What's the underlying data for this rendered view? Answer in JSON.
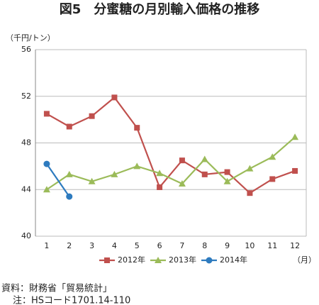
{
  "chart_data": {
    "type": "line",
    "title": "図5　分蜜糖の月別輸入価格の推移",
    "y_axis_label": "（千円/トン）",
    "x_axis_label": "（月）",
    "categories": [
      "1",
      "2",
      "3",
      "4",
      "5",
      "6",
      "7",
      "8",
      "9",
      "10",
      "11",
      "12"
    ],
    "series": [
      {
        "name": "2012年",
        "color": "#c0504d",
        "marker": "square",
        "values": [
          50.5,
          49.4,
          50.3,
          51.9,
          49.3,
          44.2,
          46.5,
          45.3,
          45.5,
          43.7,
          44.9,
          45.6
        ]
      },
      {
        "name": "2013年",
        "color": "#9bbb59",
        "marker": "triangle",
        "values": [
          44.0,
          45.3,
          44.7,
          45.3,
          46.0,
          45.4,
          44.5,
          46.6,
          44.7,
          45.8,
          46.8,
          48.5
        ]
      },
      {
        "name": "2014年",
        "color": "#2e7bbf",
        "marker": "circle",
        "values": [
          46.2,
          43.4,
          null,
          null,
          null,
          null,
          null,
          null,
          null,
          null,
          null,
          null
        ]
      }
    ],
    "ylim": [
      40,
      56
    ],
    "yticks": [
      40,
      44,
      48,
      52,
      56
    ],
    "grid": true,
    "legend": "bottom",
    "notes": [
      "資料：財務省「貿易統計」",
      "注：HSコード1701.14-110"
    ]
  }
}
